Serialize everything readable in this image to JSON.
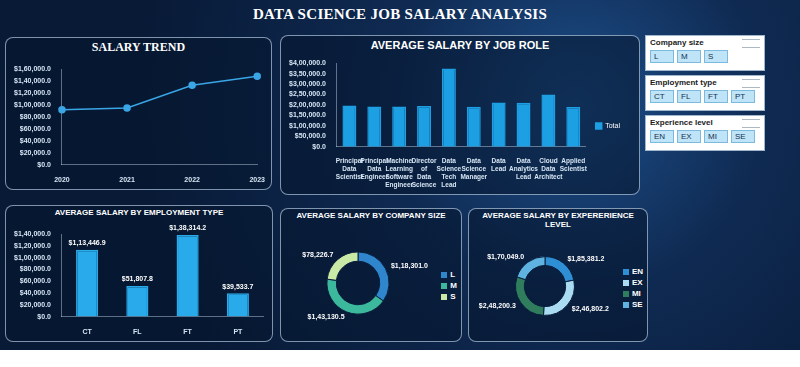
{
  "title": "DATA SCIENCE JOB SALARY ANALYSIS",
  "filters": [
    {
      "title": "Company size",
      "options": [
        "L",
        "M",
        "S"
      ]
    },
    {
      "title": "Employment type",
      "options": [
        "CT",
        "FL",
        "FT",
        "PT"
      ]
    },
    {
      "title": "Experience level",
      "options": [
        "EN",
        "EX",
        "MI",
        "SE"
      ]
    }
  ],
  "chart_data": [
    {
      "type": "line",
      "title": "SALARY TREND",
      "categories": [
        "2020",
        "2021",
        "2022",
        "2023"
      ],
      "values": [
        92000,
        95000,
        133000,
        148000
      ],
      "color": "#3aa6e6",
      "marker": "circle",
      "grid": false,
      "ylim": [
        0,
        160000
      ],
      "yticks": [
        {
          "value": 0,
          "label": "$0.0"
        },
        {
          "value": 20000,
          "label": "$20,000.0"
        },
        {
          "value": 40000,
          "label": "$40,000.0"
        },
        {
          "value": 60000,
          "label": "$60,000.0"
        },
        {
          "value": 80000,
          "label": "$80,000.0"
        },
        {
          "value": 100000,
          "label": "$1,00,000.0"
        },
        {
          "value": 120000,
          "label": "$1,20,000.0"
        },
        {
          "value": 140000,
          "label": "$1,40,000.0"
        },
        {
          "value": 160000,
          "label": "$1,60,000.0"
        }
      ]
    },
    {
      "type": "bar",
      "title": "AVERAGE SALARY BY JOB ROLE",
      "categories": [
        "Principal Data Scientist",
        "Principal Data Engineer",
        "Machine Learning Software Engineer",
        "Director of Data Science",
        "Data Science Tech Lead",
        "Data Science Manager",
        "Data Lead",
        "Data Analytics Lead",
        "Cloud Data Architect",
        "Applied Scientist"
      ],
      "series": [
        {
          "name": "Total",
          "color": "#1d9fe4",
          "values": [
            198171,
            192500,
            192420,
            195141,
            375000,
            191279,
            212500,
            211254,
            250000,
            190264
          ]
        }
      ],
      "legend": "right",
      "grid": false,
      "ylim": [
        0,
        400000
      ],
      "yticks": [
        {
          "value": 0,
          "label": "$0.0"
        },
        {
          "value": 50000,
          "label": "$50,000.0"
        },
        {
          "value": 100000,
          "label": "$1,00,000.0"
        },
        {
          "value": 150000,
          "label": "$1,50,000.0"
        },
        {
          "value": 200000,
          "label": "$2,00,000.0"
        },
        {
          "value": 250000,
          "label": "$2,50,000.0"
        },
        {
          "value": 300000,
          "label": "$3,00,000.0"
        },
        {
          "value": 350000,
          "label": "$3,50,000.0"
        },
        {
          "value": 400000,
          "label": "$4,00,000.0"
        }
      ]
    },
    {
      "type": "bar",
      "title": "AVERAGE SALARY BY EMPLOYMENT TYPE",
      "categories": [
        "CT",
        "FL",
        "FT",
        "PT"
      ],
      "values": [
        113446.9,
        51807.8,
        138314.2,
        39533.7
      ],
      "value_labels": [
        "$1,13,446.9",
        "$51,807.8",
        "$1,38,314.2",
        "$39,533.7"
      ],
      "data_labels": true,
      "color": "#29aaea",
      "grid": false,
      "ylim": [
        0,
        140000
      ],
      "yticks": [
        {
          "value": 0,
          "label": "$0.0"
        },
        {
          "value": 20000,
          "label": "$20,000.0"
        },
        {
          "value": 40000,
          "label": "$40,000.0"
        },
        {
          "value": 60000,
          "label": "$60,000.0"
        },
        {
          "value": 80000,
          "label": "$80,000.0"
        },
        {
          "value": 100000,
          "label": "$1,00,000.0"
        },
        {
          "value": 120000,
          "label": "$1,20,000.0"
        },
        {
          "value": 140000,
          "label": "$1,40,000.0"
        }
      ]
    },
    {
      "type": "doughnut",
      "title": "AVERAGE SALARY BY COMPANY SIZE",
      "categories": [
        "L",
        "M",
        "S"
      ],
      "values": [
        118301.0,
        143130.5,
        78226.7
      ],
      "value_labels": [
        "$1,18,301.0",
        "$1,43,130.5",
        "$78,226.7"
      ],
      "colors": [
        "#2f86cc",
        "#3cb89c",
        "#c9e9a6"
      ],
      "data_labels": true,
      "legend": "right"
    },
    {
      "type": "doughnut",
      "title": "AVERAGE SALARY BY EXPERERIENCE LEVEL",
      "categories": [
        "EN",
        "EX",
        "MI",
        "SE"
      ],
      "values": [
        185381.2,
        246802.2,
        248200.3,
        170049.0
      ],
      "value_labels": [
        "$1,85,381.2",
        "$2,46,802.2",
        "$2,48,200.3",
        "$1,70,049.0"
      ],
      "colors": [
        "#2e8fd4",
        "#a9dcf2",
        "#2f7d5c",
        "#5fb3e0"
      ],
      "data_labels": true,
      "legend": "right"
    }
  ]
}
